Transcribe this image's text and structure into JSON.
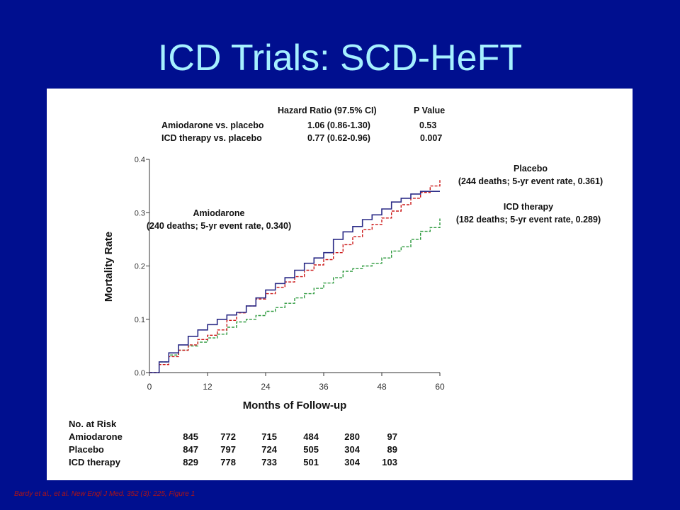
{
  "slide": {
    "title": "ICD Trials:  SCD-HeFT",
    "citation": "Bardy et al., et al. New Engl J Med. 352 (3): 225, Figure 1",
    "background_color": "#000f8f",
    "title_color": "#a6f0ff"
  },
  "hazard_table": {
    "header_hr": "Hazard Ratio (97.5% CI)",
    "header_p": "P Value",
    "rows": [
      {
        "label": "Amiodarone vs. placebo",
        "hr": "1.06 (0.86-1.30)",
        "p": "0.53"
      },
      {
        "label": "ICD therapy vs. placebo",
        "hr": "0.77 (0.62-0.96)",
        "p": "0.007"
      }
    ]
  },
  "risk_table": {
    "title": "No. at Risk",
    "rows": [
      {
        "label": "Amiodarone",
        "values": [
          "845",
          "772",
          "715",
          "484",
          "280",
          "97"
        ]
      },
      {
        "label": "Placebo",
        "values": [
          "847",
          "797",
          "724",
          "505",
          "304",
          "89"
        ]
      },
      {
        "label": "ICD therapy",
        "values": [
          "829",
          "778",
          "733",
          "501",
          "304",
          "103"
        ]
      }
    ]
  },
  "chart_data": {
    "type": "line",
    "title": "",
    "xlabel": "Months of Follow-up",
    "ylabel": "Mortality Rate",
    "xlim": [
      0,
      60
    ],
    "ylim": [
      0,
      0.4
    ],
    "x_ticks": [
      0,
      12,
      24,
      36,
      48,
      60
    ],
    "x_tick_labels": [
      "0",
      "12",
      "24",
      "36",
      "48",
      "60"
    ],
    "y_ticks": [
      0,
      0.1,
      0.2,
      0.3,
      0.4
    ],
    "y_tick_labels": [
      "0.0",
      "0.1",
      "0.2",
      "0.3",
      "0.4"
    ],
    "grid": false,
    "series": [
      {
        "name": "Amiodarone",
        "label_line1": "Amiodarone",
        "label_line2": "(240 deaths; 5-yr event rate, 0.340)",
        "color": "#2a2a86",
        "style": "solid",
        "x": [
          0,
          2,
          4,
          6,
          8,
          10,
          12,
          14,
          16,
          18,
          20,
          22,
          24,
          26,
          28,
          30,
          32,
          34,
          36,
          38,
          40,
          42,
          44,
          46,
          48,
          50,
          52,
          54,
          56,
          58,
          60
        ],
        "y": [
          0,
          0.02,
          0.037,
          0.052,
          0.068,
          0.08,
          0.09,
          0.1,
          0.108,
          0.113,
          0.125,
          0.14,
          0.155,
          0.167,
          0.178,
          0.192,
          0.205,
          0.215,
          0.225,
          0.25,
          0.264,
          0.274,
          0.287,
          0.296,
          0.307,
          0.32,
          0.327,
          0.335,
          0.34,
          0.34,
          0.34
        ]
      },
      {
        "name": "Placebo",
        "label_line1": "Placebo",
        "label_line2": "(244 deaths; 5-yr event rate, 0.361)",
        "color": "#cc1a1a",
        "style": "dashed",
        "x": [
          0,
          2,
          4,
          6,
          8,
          10,
          12,
          14,
          16,
          18,
          20,
          22,
          24,
          26,
          28,
          30,
          32,
          34,
          36,
          38,
          40,
          42,
          44,
          46,
          48,
          50,
          52,
          54,
          56,
          58,
          60
        ],
        "y": [
          0,
          0.015,
          0.03,
          0.042,
          0.052,
          0.062,
          0.07,
          0.08,
          0.098,
          0.112,
          0.125,
          0.138,
          0.148,
          0.16,
          0.17,
          0.18,
          0.192,
          0.202,
          0.212,
          0.225,
          0.24,
          0.255,
          0.268,
          0.278,
          0.29,
          0.303,
          0.315,
          0.327,
          0.338,
          0.35,
          0.361
        ]
      },
      {
        "name": "ICD therapy",
        "label_line1": "ICD therapy",
        "label_line2": "(182 deaths; 5-yr event rate, 0.289)",
        "color": "#2e9a3e",
        "style": "dashed",
        "x": [
          0,
          2,
          4,
          6,
          8,
          10,
          12,
          14,
          16,
          18,
          20,
          22,
          24,
          26,
          28,
          30,
          32,
          34,
          36,
          38,
          40,
          42,
          44,
          46,
          48,
          50,
          52,
          54,
          56,
          58,
          60
        ],
        "y": [
          0,
          0.02,
          0.033,
          0.042,
          0.05,
          0.057,
          0.065,
          0.072,
          0.085,
          0.095,
          0.1,
          0.107,
          0.115,
          0.122,
          0.13,
          0.14,
          0.148,
          0.158,
          0.168,
          0.178,
          0.19,
          0.195,
          0.2,
          0.205,
          0.215,
          0.228,
          0.236,
          0.25,
          0.265,
          0.272,
          0.289
        ]
      }
    ]
  }
}
